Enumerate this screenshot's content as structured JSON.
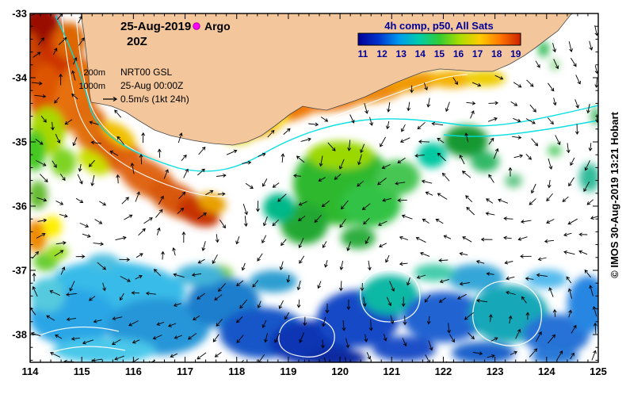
{
  "header": {
    "date": "25-Aug-2019",
    "time": "20Z",
    "argo_label": "Argo"
  },
  "legend": {
    "isobath_200": "200m",
    "isobath_1000": "1000m",
    "product": "NRT00 GSL",
    "valid_time": "25-Aug 00:00Z",
    "vector_scale": "0.5m/s (1kt 24h)"
  },
  "colorbar": {
    "title": "4h comp, p50, All Sats",
    "tick_labels": [
      "11",
      "12",
      "13",
      "14",
      "15",
      "16",
      "17",
      "18",
      "19"
    ]
  },
  "axes": {
    "x_tick_labels": [
      "114",
      "115",
      "116",
      "117",
      "118",
      "119",
      "120",
      "121",
      "122",
      "123",
      "124",
      "125"
    ],
    "y_tick_labels": [
      "-33",
      "-34",
      "-35",
      "-36",
      "-37",
      "-38"
    ]
  },
  "credit": "© IMOS 30-Aug-2019 13:21 Hobart",
  "colors": {
    "land": "#f3c69c",
    "navy": "#000099",
    "argo": "#ff00ff",
    "front": "#00dde0"
  },
  "map_data": {
    "type": "sst_map",
    "lon_range": [
      114,
      125
    ],
    "lat_range": [
      -38.4,
      -33
    ],
    "sst_scale_degc": [
      11,
      19
    ],
    "colorbar_colors": [
      "#000099",
      "#0033cc",
      "#0099ee",
      "#00ccaa",
      "#33cc33",
      "#aadd00",
      "#ffcc00",
      "#ff7700",
      "#cc2200"
    ]
  }
}
